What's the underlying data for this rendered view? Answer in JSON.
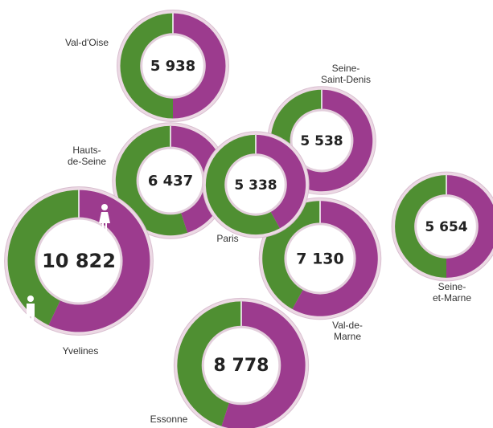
{
  "chart_data": {
    "type": "donut",
    "categories": [
      "Val-d'Oise",
      "Seine-\nSaint-Denis",
      "Hauts-\nde-Seine",
      "Val-de-\nMarne",
      "Paris",
      "Yvelines",
      "Seine-\net-Marne",
      "Essonne"
    ],
    "totals": [
      5938,
      5538,
      6437,
      7130,
      5338,
      10822,
      5654,
      8778
    ],
    "total_labels": [
      "5 938",
      "5 538",
      "6 437",
      "7 130",
      "5 338",
      "10 822",
      "5 654",
      "8 778"
    ],
    "series": [
      {
        "color": "#4f8f32",
        "values": [
          50,
          40,
          55,
          42,
          58,
          43,
          50,
          45
        ]
      },
      {
        "color": "#9c3b8e",
        "values": [
          50,
          60,
          45,
          58,
          42,
          57,
          50,
          55
        ]
      }
    ]
  }
}
